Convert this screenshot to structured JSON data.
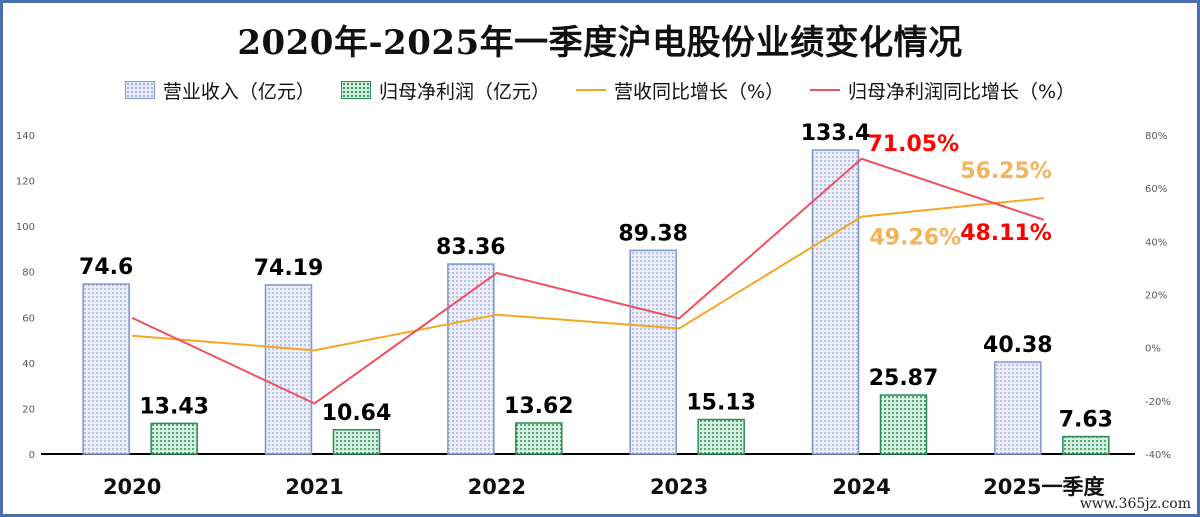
{
  "chart_data": {
    "type": "bar",
    "title": "2020年-2025年一季度沪电股份业绩变化情况",
    "categories": [
      "2020",
      "2021",
      "2022",
      "2023",
      "2024",
      "2025一季度"
    ],
    "series": [
      {
        "name": "营业收入（亿元）",
        "kind": "bar",
        "axis": "left",
        "color": "#7f95cf",
        "values": [
          74.6,
          74.19,
          83.36,
          89.38,
          133.4,
          40.38
        ],
        "labels": [
          "74.6",
          "74.19",
          "83.36",
          "89.38",
          "133.4",
          "40.38"
        ]
      },
      {
        "name": "归母净利润（亿元）",
        "kind": "bar",
        "axis": "left",
        "color": "#2e8b57",
        "values": [
          13.43,
          10.64,
          13.62,
          15.13,
          25.87,
          7.63
        ],
        "labels": [
          "13.43",
          "10.64",
          "13.62",
          "15.13",
          "25.87",
          "7.63"
        ]
      },
      {
        "name": "营收同比增长（%）",
        "kind": "line",
        "axis": "right",
        "color": "#f5a623",
        "values": [
          4.5,
          -1.0,
          12.4,
          7.2,
          49.26,
          56.25
        ],
        "labels": [
          "",
          "",
          "",
          "",
          "49.26%",
          "56.25%"
        ],
        "label_color": "#f2b35a"
      },
      {
        "name": "归母净利润同比增长（%）",
        "kind": "line",
        "axis": "right",
        "color": "#f0505e",
        "values": [
          11.2,
          -21.0,
          28.1,
          11.0,
          71.05,
          48.11
        ],
        "labels": [
          "",
          "",
          "",
          "",
          "71.05%",
          "48.11%"
        ],
        "label_color": "#ff0000"
      }
    ],
    "y_left": {
      "min": 0,
      "max": 140,
      "step": 20,
      "ticks": [
        "0",
        "20",
        "40",
        "60",
        "80",
        "100",
        "120",
        "140"
      ]
    },
    "y_right": {
      "min": -40,
      "max": 80,
      "step": 20,
      "ticks": [
        "-40%",
        "-20%",
        "0%",
        "20%",
        "40%",
        "60%",
        "80%"
      ]
    },
    "grid": false,
    "legend_position": "top"
  },
  "watermark": "www.365jz.com"
}
